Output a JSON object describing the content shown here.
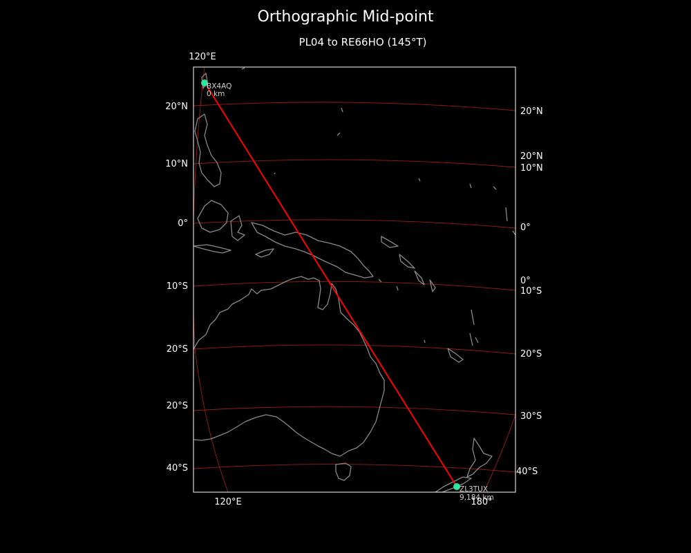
{
  "title": "Orthographic Mid-point",
  "subtitle": "PL04 to RE66HO (145°T)",
  "colors": {
    "background": "#000000",
    "path": "#ff0000",
    "graticule": "#b22222",
    "coastline": "#8a8a8a",
    "station_marker": "#2ee6a0"
  },
  "stations": {
    "start": {
      "call": "BX4AQ",
      "distance": "0 km"
    },
    "end": {
      "call": "ZL3TUX",
      "distance": "9,184 km"
    }
  },
  "axes": {
    "left_lat_labels": [
      "20°N",
      "10°N",
      "0°",
      "10°S",
      "20°S",
      "20°S",
      "40°S"
    ],
    "right_lat_labels": [
      "20°N",
      "20°N",
      "10°N",
      "0°",
      "0°",
      "10°S",
      "20°S",
      "30°S",
      "40°S"
    ],
    "top_lon_label": "120°E",
    "bottom_lon_labels": [
      "120°E",
      "180°"
    ]
  }
}
